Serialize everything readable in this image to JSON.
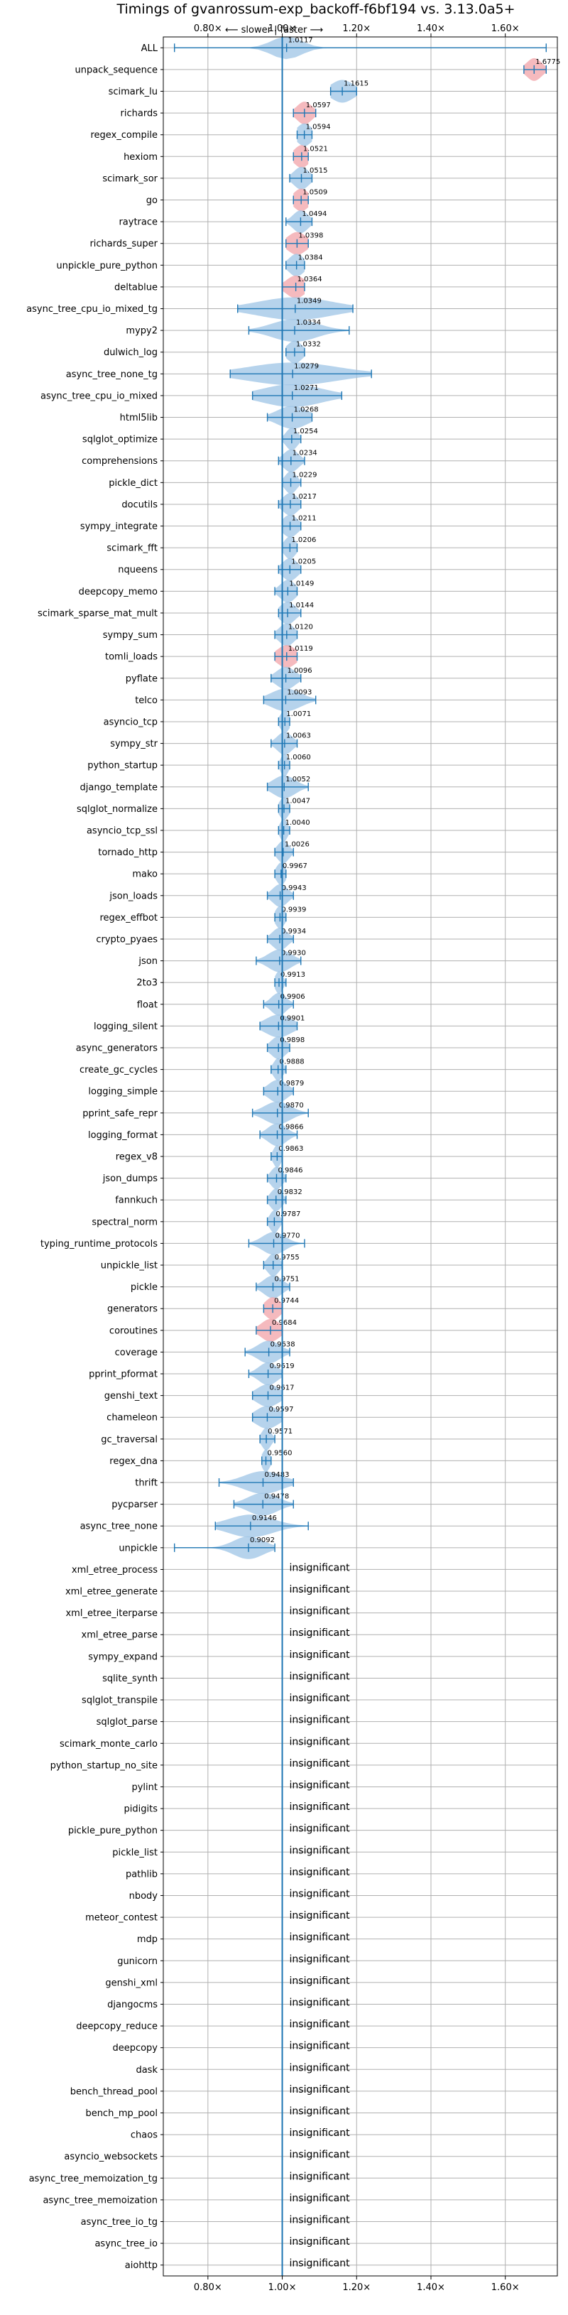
{
  "chart_data": {
    "type": "violin",
    "title": "Timings of gvanrossum-exp_backoff-f6bf194 vs. 3.13.0a5+",
    "direction_label": "⟵ slower  |  faster ⟶",
    "xlim": [
      0.68,
      1.74
    ],
    "x_ticks": [
      0.8,
      1.0,
      1.2,
      1.4,
      1.6
    ],
    "x_tick_labels": [
      "0.80×",
      "1.00×",
      "1.20×",
      "1.40×",
      "1.60×"
    ],
    "reference_x": 1.0,
    "insignificant_label": "insignificant",
    "colors": {
      "faster": "#9dc4e6",
      "slower": "#f2a3a8",
      "line": "#1f77b4"
    },
    "benchmarks": [
      {
        "name": "ALL",
        "value": 1.0117,
        "label": "1.0117",
        "min": 0.71,
        "max": 1.71,
        "spread": 0.04,
        "color": "faster"
      },
      {
        "name": "unpack_sequence",
        "value": 1.6775,
        "label": "1.6775",
        "min": 1.65,
        "max": 1.71,
        "spread": 0.02,
        "color": "slower"
      },
      {
        "name": "scimark_lu",
        "value": 1.1615,
        "label": "1.1615",
        "min": 1.13,
        "max": 1.2,
        "spread": 0.03,
        "color": "faster"
      },
      {
        "name": "richards",
        "value": 1.0597,
        "label": "1.0597",
        "min": 1.03,
        "max": 1.09,
        "spread": 0.02,
        "color": "slower"
      },
      {
        "name": "regex_compile",
        "value": 1.0594,
        "label": "1.0594",
        "min": 1.04,
        "max": 1.08,
        "spread": 0.02,
        "color": "faster"
      },
      {
        "name": "hexiom",
        "value": 1.0521,
        "label": "1.0521",
        "min": 1.03,
        "max": 1.07,
        "spread": 0.02,
        "color": "slower"
      },
      {
        "name": "scimark_sor",
        "value": 1.0515,
        "label": "1.0515",
        "min": 1.02,
        "max": 1.08,
        "spread": 0.02,
        "color": "faster"
      },
      {
        "name": "go",
        "value": 1.0509,
        "label": "1.0509",
        "min": 1.03,
        "max": 1.07,
        "spread": 0.02,
        "color": "slower"
      },
      {
        "name": "raytrace",
        "value": 1.0494,
        "label": "1.0494",
        "min": 1.01,
        "max": 1.08,
        "spread": 0.02,
        "color": "faster"
      },
      {
        "name": "richards_super",
        "value": 1.0398,
        "label": "1.0398",
        "min": 1.01,
        "max": 1.07,
        "spread": 0.025,
        "color": "slower"
      },
      {
        "name": "unpickle_pure_python",
        "value": 1.0384,
        "label": "1.0384",
        "min": 1.01,
        "max": 1.06,
        "spread": 0.02,
        "color": "faster"
      },
      {
        "name": "deltablue",
        "value": 1.0364,
        "label": "1.0364",
        "min": 1.0,
        "max": 1.06,
        "spread": 0.025,
        "color": "slower"
      },
      {
        "name": "async_tree_cpu_io_mixed_tg",
        "value": 1.0349,
        "label": "1.0349",
        "min": 0.88,
        "max": 1.19,
        "spread": 0.1,
        "color": "faster"
      },
      {
        "name": "mypy2",
        "value": 1.0334,
        "label": "1.0334",
        "min": 0.91,
        "max": 1.18,
        "spread": 0.06,
        "color": "faster"
      },
      {
        "name": "dulwich_log",
        "value": 1.0332,
        "label": "1.0332",
        "min": 1.01,
        "max": 1.06,
        "spread": 0.02,
        "color": "faster"
      },
      {
        "name": "async_tree_none_tg",
        "value": 1.0279,
        "label": "1.0279",
        "min": 0.86,
        "max": 1.24,
        "spread": 0.12,
        "color": "faster"
      },
      {
        "name": "async_tree_cpu_io_mixed",
        "value": 1.0271,
        "label": "1.0271",
        "min": 0.92,
        "max": 1.16,
        "spread": 0.08,
        "color": "faster"
      },
      {
        "name": "html5lib",
        "value": 1.0268,
        "label": "1.0268",
        "min": 0.96,
        "max": 1.08,
        "spread": 0.04,
        "color": "faster"
      },
      {
        "name": "sqlglot_optimize",
        "value": 1.0254,
        "label": "1.0254",
        "min": 1.0,
        "max": 1.05,
        "spread": 0.015,
        "color": "faster"
      },
      {
        "name": "comprehensions",
        "value": 1.0234,
        "label": "1.0234",
        "min": 0.99,
        "max": 1.06,
        "spread": 0.02,
        "color": "faster"
      },
      {
        "name": "pickle_dict",
        "value": 1.0229,
        "label": "1.0229",
        "min": 1.0,
        "max": 1.05,
        "spread": 0.015,
        "color": "faster"
      },
      {
        "name": "docutils",
        "value": 1.0217,
        "label": "1.0217",
        "min": 0.99,
        "max": 1.05,
        "spread": 0.02,
        "color": "faster"
      },
      {
        "name": "sympy_integrate",
        "value": 1.0211,
        "label": "1.0211",
        "min": 1.0,
        "max": 1.05,
        "spread": 0.02,
        "color": "faster"
      },
      {
        "name": "scimark_fft",
        "value": 1.0206,
        "label": "1.0206",
        "min": 1.0,
        "max": 1.04,
        "spread": 0.015,
        "color": "faster"
      },
      {
        "name": "nqueens",
        "value": 1.0205,
        "label": "1.0205",
        "min": 0.99,
        "max": 1.05,
        "spread": 0.02,
        "color": "faster"
      },
      {
        "name": "deepcopy_memo",
        "value": 1.0149,
        "label": "1.0149",
        "min": 0.98,
        "max": 1.04,
        "spread": 0.02,
        "color": "faster"
      },
      {
        "name": "scimark_sparse_mat_mult",
        "value": 1.0144,
        "label": "1.0144",
        "min": 0.99,
        "max": 1.05,
        "spread": 0.02,
        "color": "faster"
      },
      {
        "name": "sympy_sum",
        "value": 1.012,
        "label": "1.0120",
        "min": 0.98,
        "max": 1.04,
        "spread": 0.02,
        "color": "faster"
      },
      {
        "name": "tomli_loads",
        "value": 1.0119,
        "label": "1.0119",
        "min": 0.98,
        "max": 1.04,
        "spread": 0.025,
        "color": "slower"
      },
      {
        "name": "pyflate",
        "value": 1.0096,
        "label": "1.0096",
        "min": 0.97,
        "max": 1.05,
        "spread": 0.025,
        "color": "faster"
      },
      {
        "name": "telco",
        "value": 1.0093,
        "label": "1.0093",
        "min": 0.95,
        "max": 1.09,
        "spread": 0.04,
        "color": "faster"
      },
      {
        "name": "asyncio_tcp",
        "value": 1.0071,
        "label": "1.0071",
        "min": 0.99,
        "max": 1.02,
        "spread": 0.012,
        "color": "faster"
      },
      {
        "name": "sympy_str",
        "value": 1.0063,
        "label": "1.0063",
        "min": 0.97,
        "max": 1.04,
        "spread": 0.02,
        "color": "faster"
      },
      {
        "name": "python_startup",
        "value": 1.006,
        "label": "1.0060",
        "min": 0.99,
        "max": 1.02,
        "spread": 0.01,
        "color": "faster"
      },
      {
        "name": "django_template",
        "value": 1.0052,
        "label": "1.0052",
        "min": 0.96,
        "max": 1.07,
        "spread": 0.03,
        "color": "faster"
      },
      {
        "name": "sqlglot_normalize",
        "value": 1.0047,
        "label": "1.0047",
        "min": 0.99,
        "max": 1.02,
        "spread": 0.012,
        "color": "faster"
      },
      {
        "name": "asyncio_tcp_ssl",
        "value": 1.004,
        "label": "1.0040",
        "min": 0.99,
        "max": 1.02,
        "spread": 0.01,
        "color": "faster"
      },
      {
        "name": "tornado_http",
        "value": 1.0026,
        "label": "1.0026",
        "min": 0.98,
        "max": 1.03,
        "spread": 0.015,
        "color": "faster"
      },
      {
        "name": "mako",
        "value": 0.9967,
        "label": "0.9967",
        "min": 0.98,
        "max": 1.01,
        "spread": 0.012,
        "color": "faster"
      },
      {
        "name": "json_loads",
        "value": 0.9943,
        "label": "0.9943",
        "min": 0.96,
        "max": 1.03,
        "spread": 0.02,
        "color": "faster"
      },
      {
        "name": "regex_effbot",
        "value": 0.9939,
        "label": "0.9939",
        "min": 0.98,
        "max": 1.01,
        "spread": 0.012,
        "color": "faster"
      },
      {
        "name": "crypto_pyaes",
        "value": 0.9934,
        "label": "0.9934",
        "min": 0.96,
        "max": 1.03,
        "spread": 0.02,
        "color": "faster"
      },
      {
        "name": "json",
        "value": 0.993,
        "label": "0.9930",
        "min": 0.93,
        "max": 1.05,
        "spread": 0.03,
        "color": "faster"
      },
      {
        "name": "2to3",
        "value": 0.9913,
        "label": "0.9913",
        "min": 0.98,
        "max": 1.01,
        "spread": 0.01,
        "color": "faster"
      },
      {
        "name": "float",
        "value": 0.9906,
        "label": "0.9906",
        "min": 0.95,
        "max": 1.03,
        "spread": 0.02,
        "color": "faster"
      },
      {
        "name": "logging_silent",
        "value": 0.9901,
        "label": "0.9901",
        "min": 0.94,
        "max": 1.04,
        "spread": 0.035,
        "color": "faster"
      },
      {
        "name": "async_generators",
        "value": 0.9898,
        "label": "0.9898",
        "min": 0.96,
        "max": 1.02,
        "spread": 0.02,
        "color": "faster"
      },
      {
        "name": "create_gc_cycles",
        "value": 0.9888,
        "label": "0.9888",
        "min": 0.97,
        "max": 1.01,
        "spread": 0.012,
        "color": "faster"
      },
      {
        "name": "logging_simple",
        "value": 0.9879,
        "label": "0.9879",
        "min": 0.95,
        "max": 1.03,
        "spread": 0.025,
        "color": "faster"
      },
      {
        "name": "pprint_safe_repr",
        "value": 0.987,
        "label": "0.9870",
        "min": 0.92,
        "max": 1.07,
        "spread": 0.035,
        "color": "faster"
      },
      {
        "name": "logging_format",
        "value": 0.9866,
        "label": "0.9866",
        "min": 0.94,
        "max": 1.04,
        "spread": 0.025,
        "color": "faster"
      },
      {
        "name": "regex_v8",
        "value": 0.9863,
        "label": "0.9863",
        "min": 0.97,
        "max": 1.0,
        "spread": 0.01,
        "color": "faster"
      },
      {
        "name": "json_dumps",
        "value": 0.9846,
        "label": "0.9846",
        "min": 0.96,
        "max": 1.01,
        "spread": 0.015,
        "color": "faster"
      },
      {
        "name": "fannkuch",
        "value": 0.9832,
        "label": "0.9832",
        "min": 0.96,
        "max": 1.01,
        "spread": 0.015,
        "color": "faster"
      },
      {
        "name": "spectral_norm",
        "value": 0.9787,
        "label": "0.9787",
        "min": 0.96,
        "max": 1.0,
        "spread": 0.012,
        "color": "faster"
      },
      {
        "name": "typing_runtime_protocols",
        "value": 0.977,
        "label": "0.9770",
        "min": 0.91,
        "max": 1.06,
        "spread": 0.03,
        "color": "faster"
      },
      {
        "name": "unpickle_list",
        "value": 0.9755,
        "label": "0.9755",
        "min": 0.95,
        "max": 1.0,
        "spread": 0.015,
        "color": "faster"
      },
      {
        "name": "pickle",
        "value": 0.9751,
        "label": "0.9751",
        "min": 0.93,
        "max": 1.02,
        "spread": 0.025,
        "color": "faster"
      },
      {
        "name": "generators",
        "value": 0.9744,
        "label": "0.9744",
        "min": 0.95,
        "max": 1.0,
        "spread": 0.02,
        "color": "slower"
      },
      {
        "name": "coroutines",
        "value": 0.9684,
        "label": "0.9684",
        "min": 0.93,
        "max": 1.0,
        "spread": 0.025,
        "color": "slower"
      },
      {
        "name": "coverage",
        "value": 0.9638,
        "label": "0.9638",
        "min": 0.9,
        "max": 1.02,
        "spread": 0.03,
        "color": "faster"
      },
      {
        "name": "pprint_pformat",
        "value": 0.9619,
        "label": "0.9619",
        "min": 0.91,
        "max": 1.0,
        "spread": 0.025,
        "color": "faster"
      },
      {
        "name": "genshi_text",
        "value": 0.9617,
        "label": "0.9617",
        "min": 0.92,
        "max": 1.0,
        "spread": 0.03,
        "color": "faster"
      },
      {
        "name": "chameleon",
        "value": 0.9597,
        "label": "0.9597",
        "min": 0.92,
        "max": 1.0,
        "spread": 0.03,
        "color": "faster"
      },
      {
        "name": "gc_traversal",
        "value": 0.9571,
        "label": "0.9571",
        "min": 0.94,
        "max": 0.98,
        "spread": 0.012,
        "color": "faster"
      },
      {
        "name": "regex_dna",
        "value": 0.956,
        "label": "0.9560",
        "min": 0.945,
        "max": 0.97,
        "spread": 0.01,
        "color": "faster"
      },
      {
        "name": "thrift",
        "value": 0.9483,
        "label": "0.9483",
        "min": 0.83,
        "max": 1.03,
        "spread": 0.05,
        "color": "faster"
      },
      {
        "name": "pycparser",
        "value": 0.9478,
        "label": "0.9478",
        "min": 0.87,
        "max": 1.03,
        "spread": 0.04,
        "color": "faster"
      },
      {
        "name": "async_tree_none",
        "value": 0.9146,
        "label": "0.9146",
        "min": 0.82,
        "max": 1.07,
        "spread": 0.06,
        "color": "faster"
      },
      {
        "name": "unpickle",
        "value": 0.9092,
        "label": "0.9092",
        "min": 0.71,
        "max": 0.98,
        "spread": 0.04,
        "color": "faster"
      },
      {
        "name": "xml_etree_process",
        "insignificant": true
      },
      {
        "name": "xml_etree_generate",
        "insignificant": true
      },
      {
        "name": "xml_etree_iterparse",
        "insignificant": true
      },
      {
        "name": "xml_etree_parse",
        "insignificant": true
      },
      {
        "name": "sympy_expand",
        "insignificant": true
      },
      {
        "name": "sqlite_synth",
        "insignificant": true
      },
      {
        "name": "sqlglot_transpile",
        "insignificant": true
      },
      {
        "name": "sqlglot_parse",
        "insignificant": true
      },
      {
        "name": "scimark_monte_carlo",
        "insignificant": true
      },
      {
        "name": "python_startup_no_site",
        "insignificant": true
      },
      {
        "name": "pylint",
        "insignificant": true
      },
      {
        "name": "pidigits",
        "insignificant": true
      },
      {
        "name": "pickle_pure_python",
        "insignificant": true
      },
      {
        "name": "pickle_list",
        "insignificant": true
      },
      {
        "name": "pathlib",
        "insignificant": true
      },
      {
        "name": "nbody",
        "insignificant": true
      },
      {
        "name": "meteor_contest",
        "insignificant": true
      },
      {
        "name": "mdp",
        "insignificant": true
      },
      {
        "name": "gunicorn",
        "insignificant": true
      },
      {
        "name": "genshi_xml",
        "insignificant": true
      },
      {
        "name": "djangocms",
        "insignificant": true
      },
      {
        "name": "deepcopy_reduce",
        "insignificant": true
      },
      {
        "name": "deepcopy",
        "insignificant": true
      },
      {
        "name": "dask",
        "insignificant": true
      },
      {
        "name": "bench_thread_pool",
        "insignificant": true
      },
      {
        "name": "bench_mp_pool",
        "insignificant": true
      },
      {
        "name": "chaos",
        "insignificant": true
      },
      {
        "name": "asyncio_websockets",
        "insignificant": true
      },
      {
        "name": "async_tree_memoization_tg",
        "insignificant": true
      },
      {
        "name": "async_tree_memoization",
        "insignificant": true
      },
      {
        "name": "async_tree_io_tg",
        "insignificant": true
      },
      {
        "name": "async_tree_io",
        "insignificant": true
      },
      {
        "name": "aiohttp",
        "insignificant": true
      }
    ]
  }
}
